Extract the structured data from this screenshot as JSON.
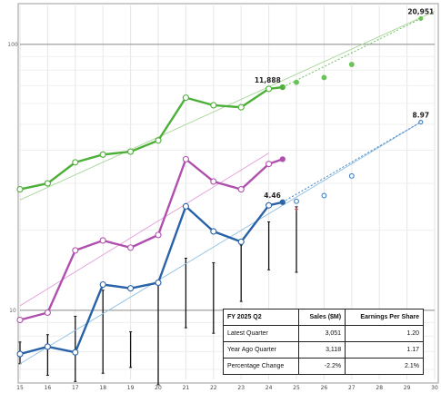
{
  "chart_data": {
    "type": "line",
    "y_scale": "log",
    "ylim": [
      5.5,
      140
    ],
    "xlim": [
      15,
      30
    ],
    "y_ticks": [
      {
        "value": 10,
        "label": "10"
      },
      {
        "value": 100,
        "label": "100"
      }
    ],
    "x_ticks": [
      "15",
      "16",
      "17",
      "18",
      "19",
      "20",
      "21",
      "22",
      "23",
      "24",
      "25",
      "26",
      "27",
      "28",
      "29",
      "30"
    ],
    "grid": true,
    "series": [
      {
        "role": "sales",
        "color": "#4caf37",
        "x": [
          15,
          16,
          17,
          18,
          19,
          20,
          21,
          22,
          23,
          24,
          24.5
        ],
        "y": [
          28.5,
          30,
          36,
          38.5,
          39.5,
          43.5,
          63,
          59,
          58,
          68,
          69
        ],
        "trend": {
          "x": [
            15,
            30
          ],
          "y": [
            26,
            133
          ],
          "color": "#a8d69a"
        },
        "projection": {
          "x": [
            25,
            26,
            27,
            29.5
          ],
          "y": [
            72,
            75,
            84,
            125
          ],
          "color": "#6cc25a"
        },
        "label": {
          "text": "11,888",
          "x": 24.5,
          "y": 69
        },
        "end_label": {
          "text": "20,951",
          "x": 29.5,
          "y": 125
        }
      },
      {
        "role": "price",
        "color": "#b04fae",
        "x": [
          15,
          16,
          17,
          18,
          19,
          20,
          21,
          22,
          23,
          24,
          24.5
        ],
        "y": [
          9.2,
          9.8,
          16.8,
          18.3,
          17.2,
          19.2,
          37,
          30.5,
          28.5,
          35.5,
          37
        ],
        "trend": {
          "x": [
            15,
            24
          ],
          "y": [
            10.4,
            39
          ],
          "color": "#e39ad9"
        }
      },
      {
        "role": "earnings",
        "color": "#2a62a8",
        "x": [
          15,
          16,
          17,
          18,
          19,
          20,
          21,
          22,
          23,
          24,
          24.5
        ],
        "y": [
          6.85,
          7.3,
          6.95,
          12.5,
          12.1,
          12.7,
          24.6,
          19.8,
          18.1,
          24.8,
          25.5
        ],
        "trend": {
          "x": [
            15,
            29.5
          ],
          "y": [
            6.3,
            51
          ],
          "color": "#8fc0e2"
        },
        "projection": {
          "x": [
            25,
            26,
            27,
            29.5
          ],
          "y": [
            25.7,
            27,
            32,
            51
          ],
          "color": "#3f7fc3"
        },
        "label": {
          "text": "4.46",
          "x": 24.5,
          "y": 25.5
        },
        "end_label": {
          "text": "8.97",
          "x": 29.5,
          "y": 51
        }
      }
    ],
    "ranges": {
      "color": "#111111",
      "x": [
        15,
        16,
        17,
        18,
        19,
        20,
        21,
        22,
        23,
        24,
        25
      ],
      "low": [
        6.3,
        5.7,
        5.4,
        5.8,
        6.1,
        5.25,
        8.6,
        8.2,
        10.8,
        14.2,
        13.9
      ],
      "high": [
        7.6,
        8.1,
        9.5,
        11.9,
        8.3,
        12.5,
        15.7,
        15.1,
        17.6,
        21.5,
        24.5
      ]
    },
    "table": {
      "title": "FY 2025 Q2",
      "columns": [
        "Sales ($M)",
        "Earnings Per Share"
      ],
      "rows": [
        {
          "label": "Latest Quarter",
          "sales": "3,051",
          "eps": "1.20"
        },
        {
          "label": "Year Ago Quarter",
          "sales": "3,118",
          "eps": "1.17"
        },
        {
          "label": "Percentage Change",
          "sales": "-2.2%",
          "eps": "2.1%"
        }
      ]
    }
  }
}
